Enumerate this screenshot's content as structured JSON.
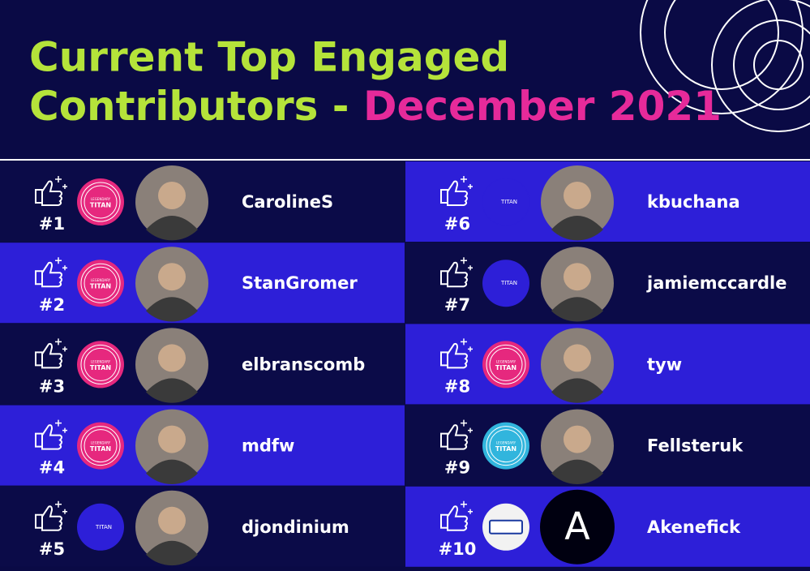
{
  "header": {
    "title_line1": "Current Top Engaged",
    "title_line2": "Contributors - ",
    "title_highlight": "December 2021"
  },
  "entries": [
    {
      "rank": "#1",
      "name": "CarolineS",
      "badge": {
        "style": "legendary-pink",
        "tier": "LEGENDARY",
        "level": "TITAN"
      }
    },
    {
      "rank": "#2",
      "name": "StanGromer",
      "badge": {
        "style": "legendary-pink",
        "tier": "LEGENDARY",
        "level": "TITAN"
      }
    },
    {
      "rank": "#3",
      "name": "elbranscomb",
      "badge": {
        "style": "legendary-pink",
        "tier": "LEGENDARY",
        "level": "TITAN"
      }
    },
    {
      "rank": "#4",
      "name": "mdfw",
      "badge": {
        "style": "legendary-pink",
        "tier": "LEGENDARY",
        "level": "TITAN"
      }
    },
    {
      "rank": "#5",
      "name": "djondinium",
      "badge": {
        "style": "titan-filled",
        "level": "TITAN"
      }
    },
    {
      "rank": "#6",
      "name": "kbuchana",
      "badge": {
        "style": "titan-outline",
        "level": "TITAN"
      }
    },
    {
      "rank": "#7",
      "name": "jamiemccardle",
      "badge": {
        "style": "titan-filled",
        "level": "TITAN"
      }
    },
    {
      "rank": "#8",
      "name": "tyw",
      "badge": {
        "style": "legendary-pink",
        "tier": "LEGENDARY",
        "level": "TITAN"
      }
    },
    {
      "rank": "#9",
      "name": "Fellsteruk",
      "badge": {
        "style": "legendary-cyan",
        "tier": "LEGENDARY",
        "level": "TITAN"
      }
    },
    {
      "rank": "#10",
      "name": "Akenefick",
      "badge": {
        "style": "image"
      },
      "avatar_letter": "A"
    }
  ]
}
